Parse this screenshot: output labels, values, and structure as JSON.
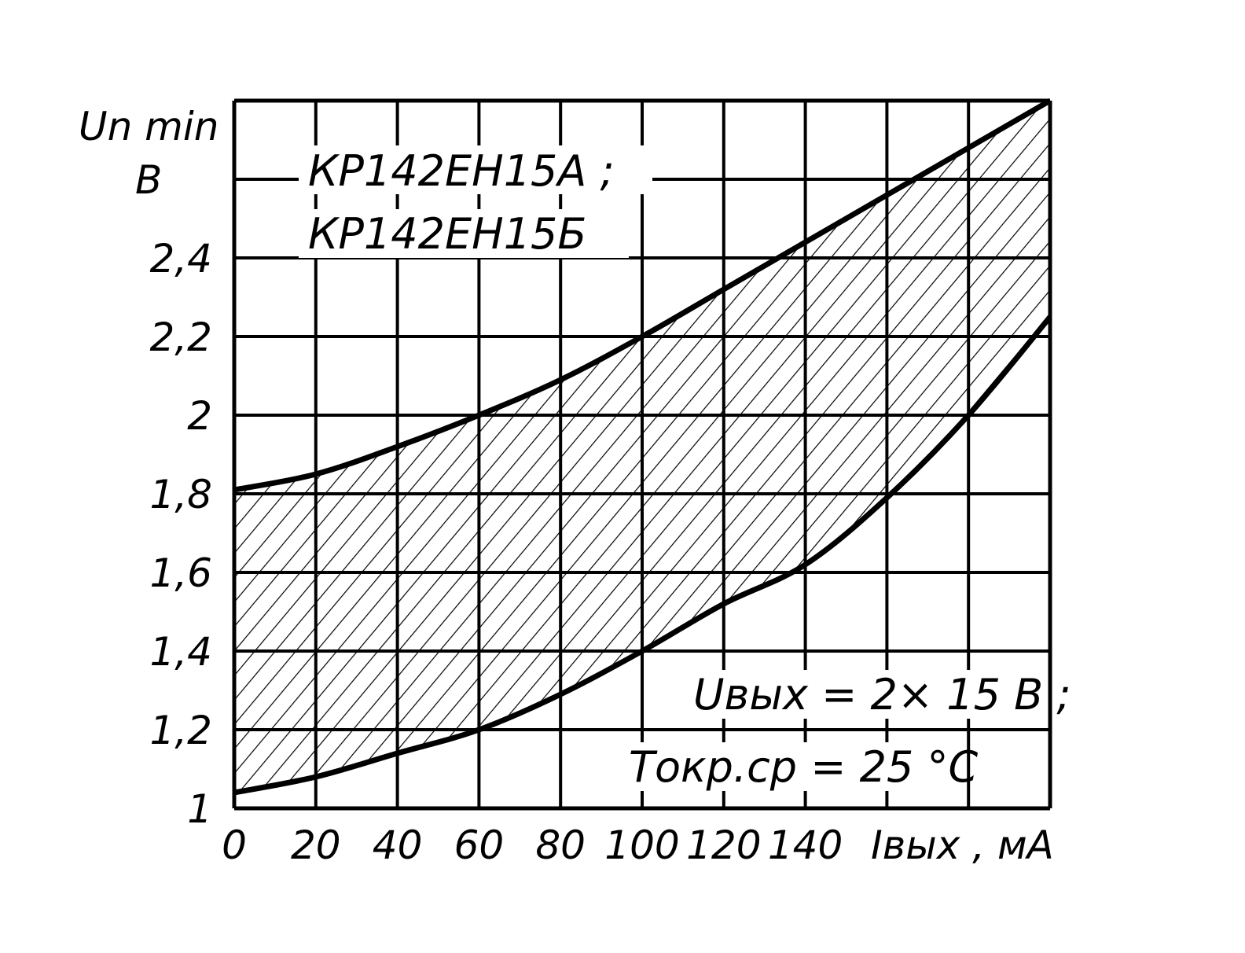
{
  "chart_data": {
    "type": "area",
    "title_lines": [
      "КР142ЕН15А ;",
      "КР142ЕН15Б"
    ],
    "ylabel": "Un min",
    "yunit": "В",
    "xlabel": "Iвых , мА",
    "conditions": [
      "Uвых = 2× 15 В ;",
      "Tокр.ср = 25 °С"
    ],
    "xlim": [
      0,
      200
    ],
    "ylim": [
      1.0,
      2.8
    ],
    "xticks": [
      0,
      20,
      40,
      60,
      80,
      100,
      120,
      140
    ],
    "xtick_labels": [
      "0",
      "20",
      "40",
      "60",
      "80",
      "100",
      "120",
      "140"
    ],
    "yticks": [
      1.0,
      1.2,
      1.4,
      1.6,
      1.8,
      2.0,
      2.2,
      2.4
    ],
    "ytick_labels": [
      "1",
      "1,2",
      "1,4",
      "1,6",
      "1,8",
      "2",
      "2,2",
      "2,4"
    ],
    "grid": true,
    "series": [
      {
        "role": "upper",
        "x": [
          0,
          20,
          40,
          60,
          80,
          100,
          120,
          140,
          160,
          180,
          200
        ],
        "y": [
          1.81,
          1.85,
          1.92,
          2.0,
          2.09,
          2.2,
          2.32,
          2.44,
          2.56,
          2.68,
          2.8
        ]
      },
      {
        "role": "lower",
        "x": [
          0,
          20,
          40,
          60,
          80,
          100,
          120,
          140,
          160,
          180,
          200
        ],
        "y": [
          1.04,
          1.08,
          1.14,
          1.2,
          1.29,
          1.4,
          1.52,
          1.62,
          1.79,
          2.0,
          2.25
        ]
      }
    ],
    "fill": "hatched region between upper and lower"
  }
}
